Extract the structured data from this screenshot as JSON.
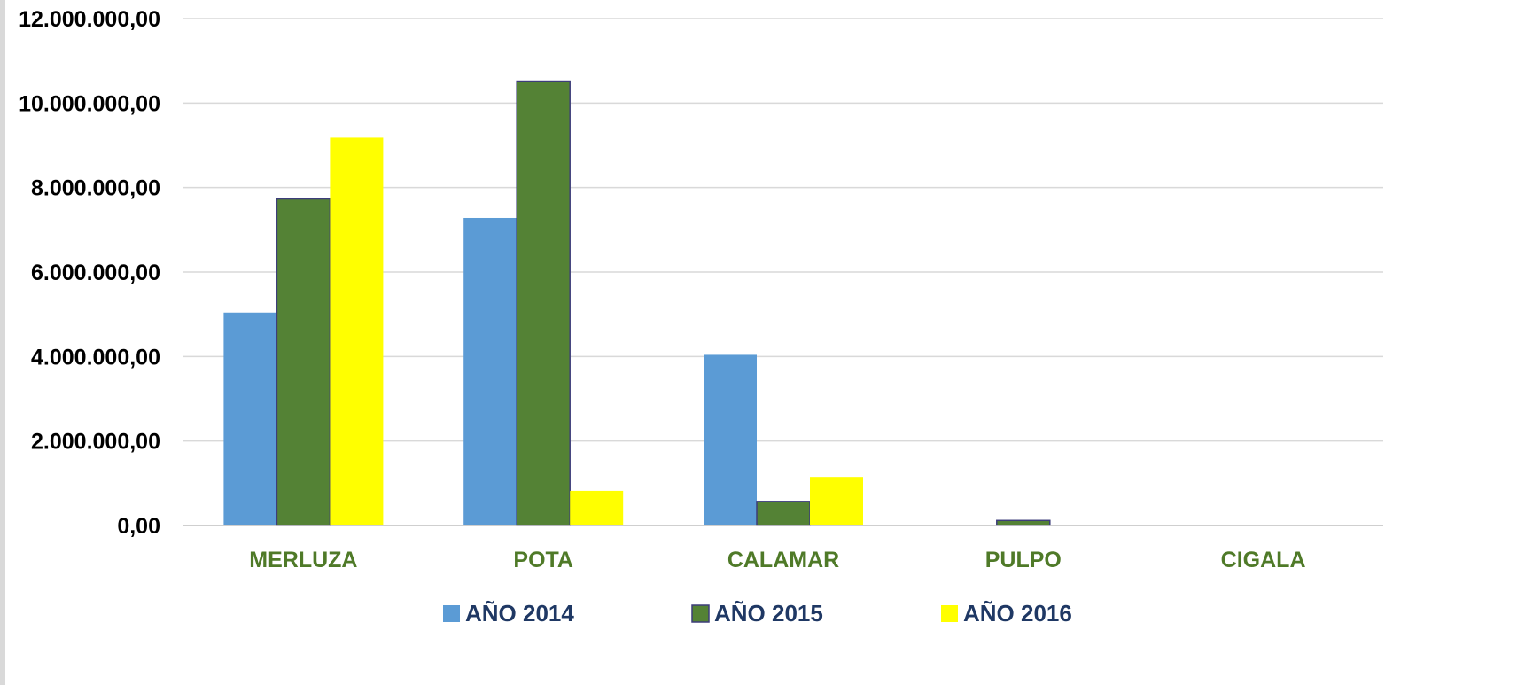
{
  "chart_data": {
    "type": "bar",
    "categories": [
      "MERLUZA",
      "POTA",
      "CALAMAR",
      "PULPO",
      "CIGALA"
    ],
    "series": [
      {
        "name": "AÑO 2014",
        "color": "#5b9bd5",
        "values": [
          5040000,
          7280000,
          4040000,
          0,
          0
        ]
      },
      {
        "name": "AÑO 2015",
        "color": "#548235",
        "values": [
          7730000,
          10520000,
          570000,
          120000,
          0
        ]
      },
      {
        "name": "AÑO 2016",
        "color": "#ffff00",
        "values": [
          9180000,
          820000,
          1150000,
          15000,
          20000
        ]
      }
    ],
    "yticks": [
      "0,00",
      "2.000.000,00",
      "4.000.000,00",
      "6.000.000,00",
      "8.000.000,00",
      "10.000.000,00",
      "12.000.000,00"
    ],
    "ylim": [
      0,
      12000000
    ],
    "grid": true,
    "legend_position": "bottom"
  }
}
